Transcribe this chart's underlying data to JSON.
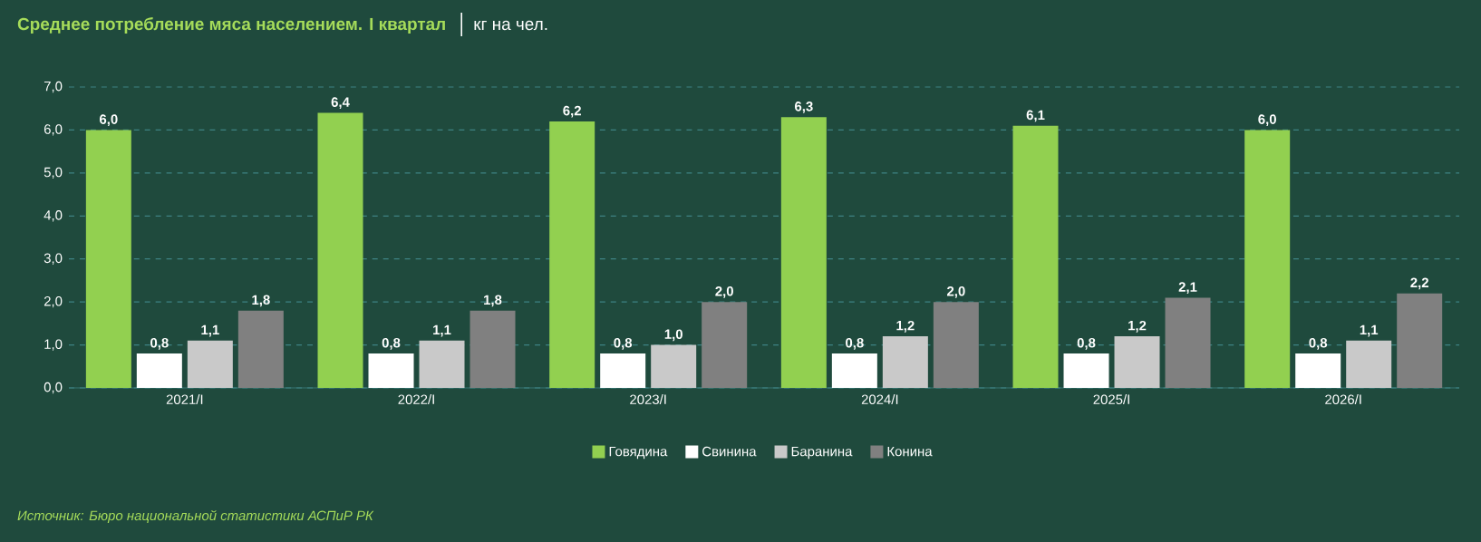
{
  "chart_data": {
    "type": "bar",
    "title": "Среднее потребление мяса населением. I квартал",
    "subtitle": "кг на чел.",
    "categories": [
      "2021/I",
      "2022/I",
      "2023/I",
      "2024/I",
      "2025/I",
      "2026/I"
    ],
    "series": [
      {
        "name": "Говядина",
        "color": "#92d050",
        "values": [
          6.0,
          6.4,
          6.2,
          6.3,
          6.1,
          6.0
        ],
        "value_labels": [
          "6,0",
          "6,4",
          "6,2",
          "6,3",
          "6,1",
          "6,0"
        ]
      },
      {
        "name": "Свинина",
        "color": "#ffffff",
        "values": [
          0.8,
          0.8,
          0.8,
          0.8,
          0.8,
          0.8
        ],
        "value_labels": [
          "0,8",
          "0,8",
          "0,8",
          "0,8",
          "0,8",
          "0,8"
        ]
      },
      {
        "name": "Баранина",
        "color": "#c9c9c9",
        "values": [
          1.1,
          1.1,
          1.0,
          1.2,
          1.2,
          1.1
        ],
        "value_labels": [
          "1,1",
          "1,1",
          "1,0",
          "1,2",
          "1,2",
          "1,1"
        ]
      },
      {
        "name": "Конина",
        "color": "#808080",
        "values": [
          1.8,
          1.8,
          2.0,
          2.0,
          2.1,
          2.2
        ],
        "value_labels": [
          "1,8",
          "1,8",
          "2,0",
          "2,0",
          "2,1",
          "2,2"
        ]
      }
    ],
    "ylim": [
      0,
      7
    ],
    "yticks": [
      {
        "value": 0,
        "label": "0,0"
      },
      {
        "value": 1,
        "label": "1,0"
      },
      {
        "value": 2,
        "label": "2,0"
      },
      {
        "value": 3,
        "label": "3,0"
      },
      {
        "value": 4,
        "label": "4,0"
      },
      {
        "value": 5,
        "label": "5,0"
      },
      {
        "value": 6,
        "label": "6,0"
      },
      {
        "value": 7,
        "label": "7,0"
      }
    ],
    "grid": "y",
    "legend": "bottom",
    "annotations": [
      "Источник: Бюро национальной статистики АСПиР РК"
    ]
  }
}
